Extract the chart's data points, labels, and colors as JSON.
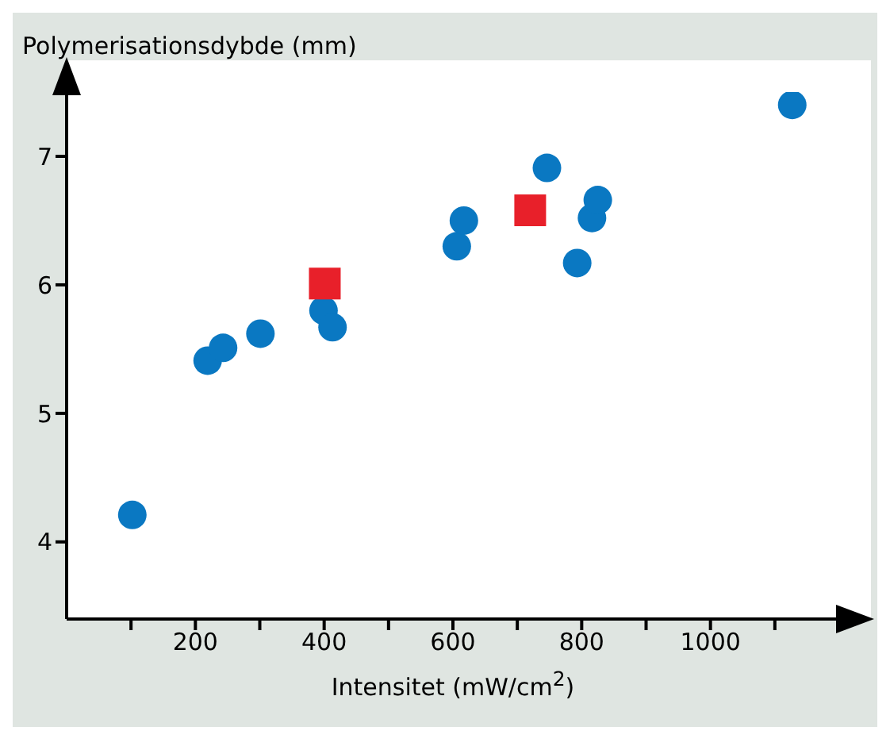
{
  "chart_data": {
    "type": "scatter",
    "ylabel": "Polymerisationsdybde (mm)",
    "xlabel": "Intensitet (mW/cm$^{2}$)",
    "xlim": [
      0,
      1200
    ],
    "ylim": [
      3.4,
      7.5
    ],
    "xticks": [
      {
        "value": 100,
        "label": null
      },
      200,
      {
        "value": 300,
        "label": null
      },
      400,
      {
        "value": 500,
        "label": null
      },
      600,
      {
        "value": 700,
        "label": null
      },
      800,
      {
        "value": 900,
        "label": null
      },
      1000,
      {
        "value": 1100,
        "label": null
      }
    ],
    "yticks": [
      4,
      5,
      6,
      7
    ],
    "grid": false,
    "series": [
      {
        "color": "#0a78c2",
        "marker": "circle",
        "x": [
          102,
          219,
          243,
          301,
          399,
          413,
          606,
          617,
          746,
          793,
          816,
          825,
          1127
        ],
        "values": [
          4.21,
          5.41,
          5.51,
          5.62,
          5.8,
          5.67,
          6.3,
          6.5,
          6.91,
          6.17,
          6.52,
          6.66,
          7.4
        ]
      },
      {
        "color": "#e8202a",
        "marker": "square",
        "x": [
          401,
          720
        ],
        "values": [
          6.01,
          6.58
        ]
      }
    ]
  }
}
